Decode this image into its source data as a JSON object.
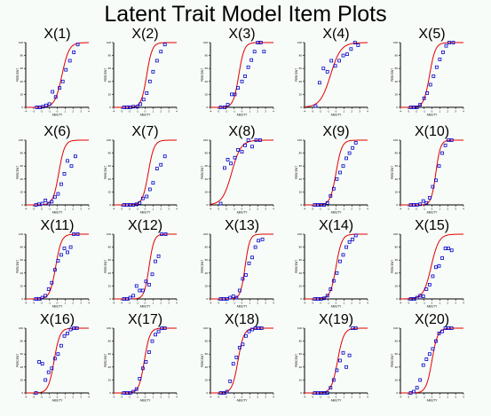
{
  "page": {
    "title": "Latent Trait Model Item Plots"
  },
  "colors": {
    "curve": "#e00000",
    "points": "#0000cc",
    "axis": "#000000",
    "background": "#f8fcf8"
  },
  "chart_data": {
    "type": "scatter",
    "title": "Latent Trait Model Item Plots",
    "xlabel": "ABILITY",
    "ylabel": "PERCENT",
    "xlim": [
      -4,
      4
    ],
    "ylim": [
      0,
      100
    ],
    "xticks": [
      "-4",
      "-3",
      "-2",
      "-1",
      "0",
      "1",
      "2",
      "3",
      "4"
    ],
    "yticks": [
      "0",
      "20",
      "40",
      "60",
      "80",
      "100"
    ],
    "grid": false,
    "panels": [
      {
        "title": "X(1)",
        "curve": {
          "a": 1.3,
          "b": 0.6
        },
        "points": [
          [
            -2.6,
            0
          ],
          [
            -2.2,
            0
          ],
          [
            -1.8,
            1
          ],
          [
            -1.4,
            3
          ],
          [
            -1,
            5
          ],
          [
            -0.6,
            24
          ],
          [
            -0.2,
            16
          ],
          [
            0.3,
            30
          ],
          [
            0.7,
            40
          ],
          [
            1.1,
            58
          ],
          [
            1.6,
            72
          ],
          [
            2.1,
            85
          ],
          [
            2.6,
            97
          ]
        ]
      },
      {
        "title": "X(2)",
        "curve": {
          "a": 1.7,
          "b": 0.2
        },
        "points": [
          [
            -2.7,
            0
          ],
          [
            -2.3,
            0
          ],
          [
            -1.9,
            0
          ],
          [
            -1.5,
            1
          ],
          [
            -1,
            1
          ],
          [
            -0.6,
            5
          ],
          [
            -0.2,
            12
          ],
          [
            0.2,
            22
          ],
          [
            0.6,
            40
          ],
          [
            1,
            55
          ],
          [
            1.5,
            72
          ],
          [
            2,
            86
          ],
          [
            2.5,
            97
          ]
        ]
      },
      {
        "title": "X(3)",
        "curve": {
          "a": 1.7,
          "b": -0.4
        },
        "points": [
          [
            -2.7,
            0
          ],
          [
            -2.2,
            0
          ],
          [
            -1.8,
            4
          ],
          [
            -1.3,
            20
          ],
          [
            -0.9,
            20
          ],
          [
            -0.5,
            30
          ],
          [
            0,
            40
          ],
          [
            0.4,
            48
          ],
          [
            0.8,
            62
          ],
          [
            1.2,
            73
          ],
          [
            1.6,
            86
          ],
          [
            2,
            100
          ],
          [
            2.4,
            100
          ],
          [
            2.8,
            86
          ]
        ]
      },
      {
        "title": "X(4)",
        "curve": {
          "a": 0.9,
          "b": -0.7
        },
        "points": [
          [
            -2.6,
            2
          ],
          [
            -2.1,
            38
          ],
          [
            -1.6,
            60
          ],
          [
            -1.1,
            55
          ],
          [
            -0.6,
            72
          ],
          [
            -0.1,
            64
          ],
          [
            0.4,
            72
          ],
          [
            0.9,
            80
          ],
          [
            1.4,
            82
          ],
          [
            1.9,
            90
          ],
          [
            2.4,
            100
          ],
          [
            2.8,
            96
          ]
        ]
      },
      {
        "title": "X(5)",
        "curve": {
          "a": 1.6,
          "b": -0.3
        },
        "points": [
          [
            -2.7,
            0
          ],
          [
            -2.3,
            0
          ],
          [
            -1.9,
            0
          ],
          [
            -1.5,
            4
          ],
          [
            -1,
            14
          ],
          [
            -0.6,
            22
          ],
          [
            -0.2,
            35
          ],
          [
            0.2,
            48
          ],
          [
            0.6,
            62
          ],
          [
            1,
            74
          ],
          [
            1.4,
            85
          ],
          [
            1.8,
            95
          ],
          [
            2.2,
            100
          ],
          [
            2.7,
            100
          ]
        ]
      },
      {
        "title": "X(6)",
        "curve": {
          "a": 1.6,
          "b": 0.2
        },
        "points": [
          [
            -2.7,
            0
          ],
          [
            -2.3,
            1
          ],
          [
            -1.9,
            2
          ],
          [
            -1.5,
            7
          ],
          [
            -1.1,
            2
          ],
          [
            -0.7,
            5
          ],
          [
            -0.3,
            12
          ],
          [
            0.1,
            17
          ],
          [
            0.5,
            32
          ],
          [
            0.9,
            48
          ],
          [
            1.3,
            68
          ],
          [
            1.8,
            60
          ],
          [
            2.3,
            75
          ]
        ]
      },
      {
        "title": "X(7)",
        "curve": {
          "a": 1.6,
          "b": 0.4
        },
        "points": [
          [
            -2.7,
            0
          ],
          [
            -2.3,
            0
          ],
          [
            -1.9,
            0
          ],
          [
            -1.5,
            0
          ],
          [
            -1.1,
            1
          ],
          [
            -0.7,
            3
          ],
          [
            -0.3,
            10
          ],
          [
            0.2,
            13
          ],
          [
            0.6,
            24
          ],
          [
            1,
            34
          ],
          [
            1.5,
            56
          ],
          [
            2,
            62
          ],
          [
            2.5,
            75
          ]
        ]
      },
      {
        "title": "X(8)",
        "curve": {
          "a": 1.0,
          "b": -1.3
        },
        "points": [
          [
            -2.7,
            2
          ],
          [
            -2.2,
            57
          ],
          [
            -1.8,
            70
          ],
          [
            -1.4,
            64
          ],
          [
            -0.9,
            73
          ],
          [
            -0.5,
            85
          ],
          [
            0,
            82
          ],
          [
            0.4,
            92
          ],
          [
            0.8,
            100
          ],
          [
            1.3,
            90
          ],
          [
            1.8,
            100
          ],
          [
            2.3,
            100
          ]
        ]
      },
      {
        "title": "X(9)",
        "curve": {
          "a": 1.6,
          "b": 0.0
        },
        "points": [
          [
            -2.7,
            0
          ],
          [
            -2.3,
            0
          ],
          [
            -1.9,
            0
          ],
          [
            -1.5,
            0
          ],
          [
            -1.1,
            3
          ],
          [
            -0.7,
            14
          ],
          [
            -0.3,
            25
          ],
          [
            0.1,
            40
          ],
          [
            0.5,
            50
          ],
          [
            0.9,
            60
          ],
          [
            1.3,
            72
          ],
          [
            1.7,
            80
          ],
          [
            2.1,
            88
          ],
          [
            2.5,
            96
          ]
        ]
      },
      {
        "title": "X(10)",
        "curve": {
          "a": 2.0,
          "b": 0.5
        },
        "points": [
          [
            -2.7,
            0
          ],
          [
            -2.3,
            0
          ],
          [
            -1.9,
            0
          ],
          [
            -1.5,
            1
          ],
          [
            -1.1,
            6
          ],
          [
            -0.7,
            3
          ],
          [
            -0.3,
            11
          ],
          [
            0.1,
            28
          ],
          [
            0.5,
            38
          ],
          [
            0.9,
            60
          ],
          [
            1.3,
            80
          ],
          [
            1.7,
            92
          ],
          [
            2.1,
            100
          ],
          [
            2.5,
            100
          ]
        ]
      },
      {
        "title": "X(11)",
        "curve": {
          "a": 1.6,
          "b": -0.2
        },
        "points": [
          [
            -2.7,
            0
          ],
          [
            -2.3,
            0
          ],
          [
            -1.9,
            2
          ],
          [
            -1.5,
            5
          ],
          [
            -1.1,
            15
          ],
          [
            -0.7,
            25
          ],
          [
            -0.3,
            45
          ],
          [
            0.1,
            59
          ],
          [
            0.5,
            68
          ],
          [
            0.9,
            78
          ],
          [
            1.3,
            72
          ],
          [
            1.7,
            80
          ],
          [
            2.1,
            100
          ],
          [
            2.6,
            100
          ]
        ]
      },
      {
        "title": "X(12)",
        "curve": {
          "a": 1.9,
          "b": 0.5
        },
        "points": [
          [
            -2.7,
            0
          ],
          [
            -2.3,
            0
          ],
          [
            -1.9,
            2
          ],
          [
            -1.5,
            5
          ],
          [
            -1.1,
            20
          ],
          [
            -0.7,
            13
          ],
          [
            -0.3,
            13
          ],
          [
            0.1,
            27
          ],
          [
            0.5,
            22
          ],
          [
            0.9,
            38
          ],
          [
            1.3,
            58
          ],
          [
            1.7,
            66
          ],
          [
            2.1,
            100
          ],
          [
            2.6,
            100
          ]
        ]
      },
      {
        "title": "X(13)",
        "curve": {
          "a": 2.0,
          "b": 0.4
        },
        "points": [
          [
            -2.7,
            0
          ],
          [
            -2.3,
            0
          ],
          [
            -1.9,
            0
          ],
          [
            -1.5,
            2
          ],
          [
            -1.1,
            4
          ],
          [
            -0.7,
            2
          ],
          [
            -0.3,
            13
          ],
          [
            0.1,
            31
          ],
          [
            0.5,
            37
          ],
          [
            0.9,
            55
          ],
          [
            1.3,
            64
          ],
          [
            1.7,
            80
          ],
          [
            2.1,
            90
          ],
          [
            2.6,
            92
          ]
        ]
      },
      {
        "title": "X(14)",
        "curve": {
          "a": 1.6,
          "b": 0.0
        },
        "points": [
          [
            -2.7,
            0
          ],
          [
            -2.3,
            0
          ],
          [
            -1.9,
            0
          ],
          [
            -1.5,
            1
          ],
          [
            -1.1,
            5
          ],
          [
            -0.7,
            15
          ],
          [
            -0.3,
            28
          ],
          [
            0.1,
            40
          ],
          [
            0.5,
            58
          ],
          [
            0.9,
            68
          ],
          [
            1.3,
            80
          ],
          [
            1.7,
            88
          ],
          [
            2.1,
            92
          ],
          [
            2.5,
            98
          ]
        ]
      },
      {
        "title": "X(15)",
        "curve": {
          "a": 1.2,
          "b": -0.1
        },
        "points": [
          [
            -2.7,
            0
          ],
          [
            -2.3,
            0
          ],
          [
            -1.9,
            2
          ],
          [
            -1.5,
            5
          ],
          [
            -1.1,
            4
          ],
          [
            -0.7,
            15
          ],
          [
            -0.3,
            22
          ],
          [
            0.1,
            35
          ],
          [
            0.5,
            49
          ],
          [
            0.9,
            51
          ],
          [
            1.3,
            63
          ],
          [
            1.7,
            78
          ],
          [
            2.1,
            78
          ],
          [
            2.5,
            75
          ]
        ]
      },
      {
        "title": "X(16)",
        "curve": {
          "a": 1.6,
          "b": -0.4
        },
        "points": [
          [
            -2.7,
            0
          ],
          [
            -2.3,
            48
          ],
          [
            -1.9,
            45
          ],
          [
            -1.5,
            20
          ],
          [
            -1.1,
            32
          ],
          [
            -0.7,
            38
          ],
          [
            -0.3,
            53
          ],
          [
            0.1,
            60
          ],
          [
            0.5,
            73
          ],
          [
            0.9,
            88
          ],
          [
            1.3,
            92
          ],
          [
            1.7,
            98
          ],
          [
            2.1,
            100
          ],
          [
            2.5,
            100
          ]
        ]
      },
      {
        "title": "X(17)",
        "curve": {
          "a": 1.7,
          "b": -0.1
        },
        "points": [
          [
            -2.7,
            0
          ],
          [
            -2.3,
            0
          ],
          [
            -1.9,
            0
          ],
          [
            -1.5,
            2
          ],
          [
            -1.1,
            6
          ],
          [
            -0.7,
            22
          ],
          [
            -0.3,
            38
          ],
          [
            0.1,
            48
          ],
          [
            0.5,
            63
          ],
          [
            0.9,
            80
          ],
          [
            1.3,
            90
          ],
          [
            1.7,
            95
          ],
          [
            2.1,
            100
          ],
          [
            2.5,
            100
          ]
        ]
      },
      {
        "title": "X(18)",
        "curve": {
          "a": 1.6,
          "b": -0.5
        },
        "points": [
          [
            -2.7,
            0
          ],
          [
            -2.3,
            0
          ],
          [
            -1.9,
            2
          ],
          [
            -1.5,
            18
          ],
          [
            -1.1,
            45
          ],
          [
            -0.7,
            55
          ],
          [
            -0.3,
            70
          ],
          [
            0.1,
            75
          ],
          [
            0.5,
            88
          ],
          [
            0.9,
            95
          ],
          [
            1.3,
            98
          ],
          [
            1.7,
            100
          ],
          [
            2.1,
            100
          ],
          [
            2.5,
            100
          ]
        ]
      },
      {
        "title": "X(19)",
        "curve": {
          "a": 1.5,
          "b": 0.2
        },
        "points": [
          [
            -2.7,
            0
          ],
          [
            -2.3,
            0
          ],
          [
            -1.9,
            0
          ],
          [
            -1.5,
            0
          ],
          [
            -1.1,
            0
          ],
          [
            -0.7,
            8
          ],
          [
            -0.3,
            20
          ],
          [
            0.1,
            35
          ],
          [
            0.5,
            50
          ],
          [
            0.9,
            62
          ],
          [
            1.3,
            40
          ],
          [
            1.7,
            58
          ],
          [
            2.1,
            100
          ],
          [
            2.5,
            100
          ]
        ]
      },
      {
        "title": "X(20)",
        "curve": {
          "a": 1.6,
          "b": 0.0
        },
        "points": [
          [
            -2.7,
            0
          ],
          [
            -2.3,
            2
          ],
          [
            -1.9,
            8
          ],
          [
            -1.5,
            20
          ],
          [
            -1.1,
            43
          ],
          [
            -0.7,
            52
          ],
          [
            -0.3,
            60
          ],
          [
            0.1,
            68
          ],
          [
            0.5,
            80
          ],
          [
            0.9,
            92
          ],
          [
            1.3,
            95
          ],
          [
            1.7,
            100
          ],
          [
            2.1,
            100
          ],
          [
            2.5,
            100
          ]
        ]
      }
    ]
  }
}
